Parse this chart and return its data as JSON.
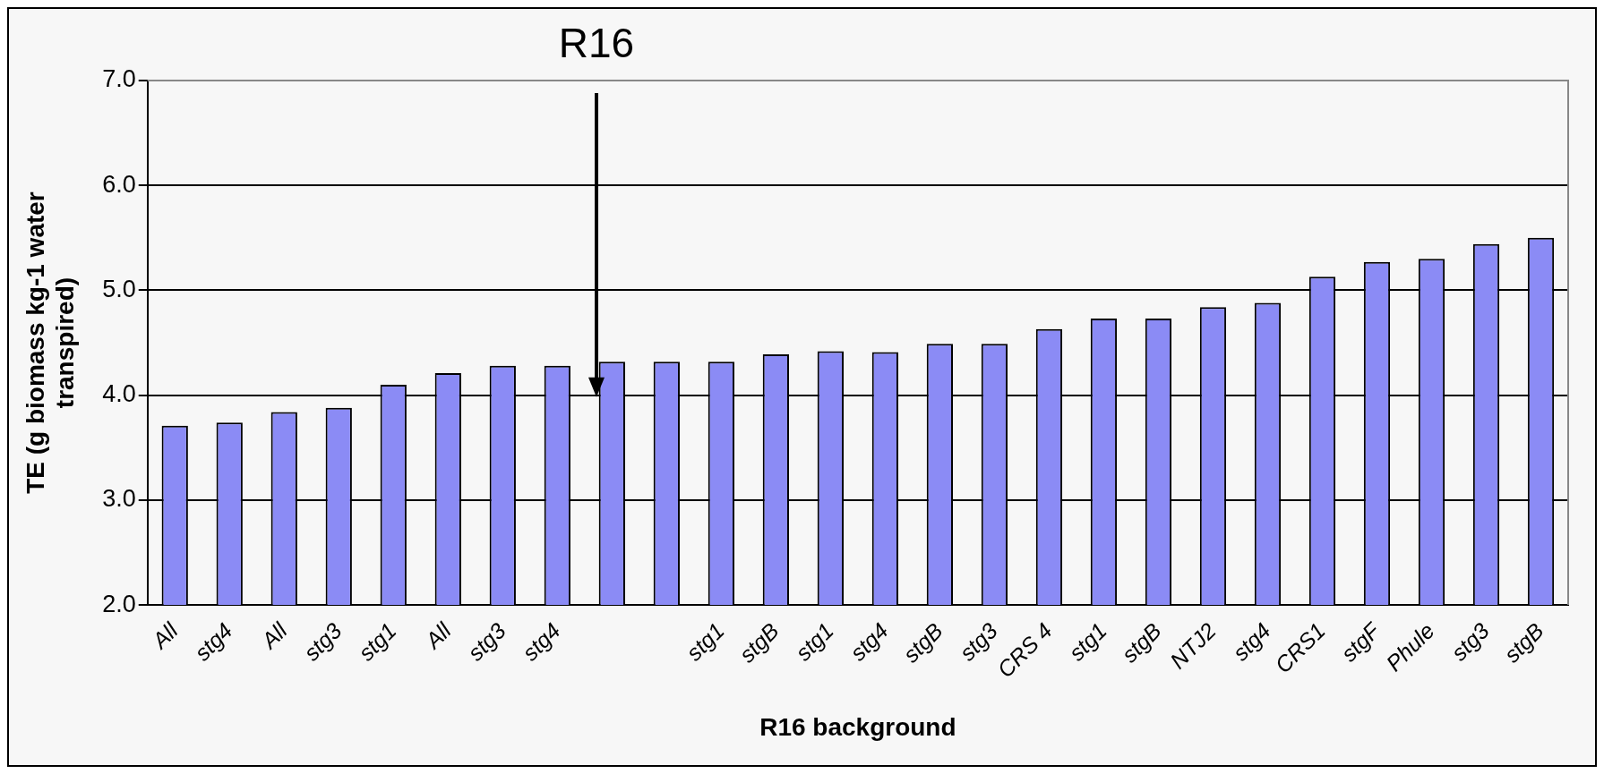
{
  "chart_data": {
    "type": "bar",
    "xlabel": "R16 background",
    "ylabel": "TE (g biomass kg-1 water transpired)",
    "categories": [
      "All",
      "stg4",
      "All",
      "stg3",
      "stg1",
      "All",
      "stg3",
      "stg4",
      null,
      null,
      "stg1",
      "stgB",
      "stg1",
      "stg4",
      "stgB",
      "stg3",
      "CRS 4",
      "stg1",
      "stgB",
      "NTJ2",
      "stg4",
      "CRS1",
      "stgF",
      "Phule",
      "stg3",
      "stgB"
    ],
    "values": [
      3.71,
      3.74,
      3.84,
      3.88,
      4.1,
      4.21,
      4.28,
      4.28,
      4.32,
      4.32,
      4.32,
      4.39,
      4.42,
      4.41,
      4.49,
      4.49,
      4.63,
      4.73,
      4.73,
      4.84,
      4.88,
      5.13,
      5.27,
      5.3,
      5.44,
      5.5
    ],
    "color": "#8b8bf5",
    "ylim": [
      2,
      7
    ],
    "yticks": [
      {
        "value": 2,
        "label": "2.0"
      },
      {
        "value": 3,
        "label": "3.0"
      },
      {
        "value": 4,
        "label": "4.0"
      },
      {
        "value": 5,
        "label": "5.0"
      },
      {
        "value": 6,
        "label": "6.0"
      },
      {
        "value": 7,
        "label": "7.0"
      }
    ],
    "grid": "y",
    "annotations": [
      "R16"
    ]
  }
}
